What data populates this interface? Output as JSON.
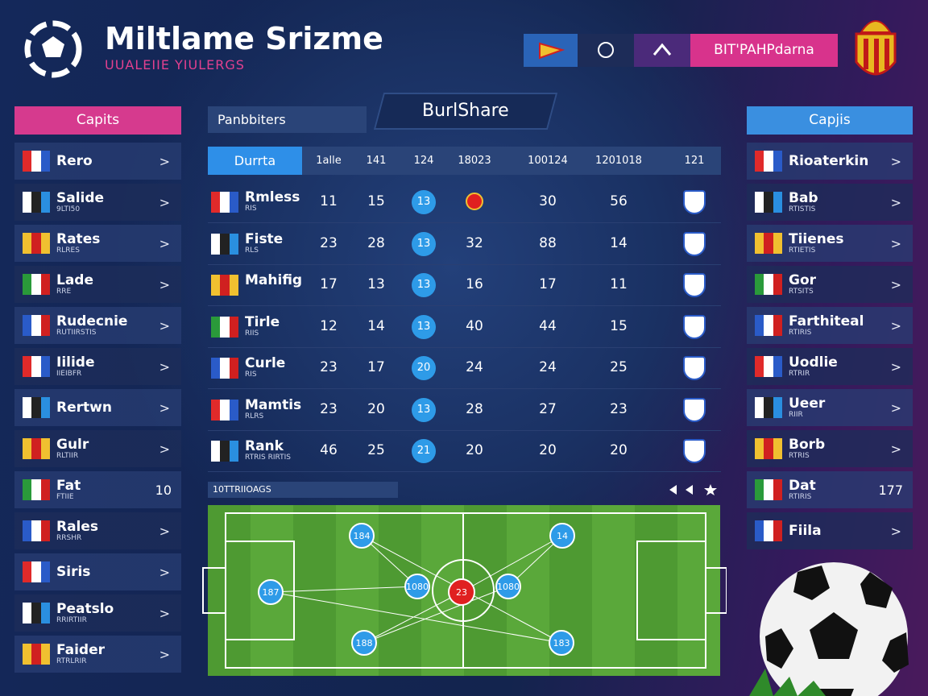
{
  "header": {
    "title": "Miltlame Srizme",
    "subtitle": "UUALEIIE YIULERGS",
    "tab_label": "BIT'PAHPdarna"
  },
  "left_panel": {
    "title": "Capits",
    "items": [
      {
        "name": "Rero"
      },
      {
        "name": "Salide",
        "sub": "9LTI50"
      },
      {
        "name": "Rates",
        "sub": "RLRES"
      },
      {
        "name": "Lade",
        "sub": "RRE"
      },
      {
        "name": "Rudecnie",
        "sub": "RUTIIRSTIS"
      },
      {
        "name": "Iilide",
        "sub": "IIEIBFR"
      },
      {
        "name": "Rertwn"
      },
      {
        "name": "Gulr",
        "sub": "RLTIIR"
      },
      {
        "name": "Fat",
        "sub": "FTIIE",
        "value": 10
      },
      {
        "name": "Rales",
        "sub": "RRSHR"
      },
      {
        "name": "Siris"
      },
      {
        "name": "Peatslo",
        "sub": "RRIRTIIR"
      },
      {
        "name": "Faider",
        "sub": "RTRLRIR"
      }
    ]
  },
  "center": {
    "tab": "Panbbiters",
    "heading": "BurlShare",
    "columns": [
      "Durrta",
      "1alle",
      "141",
      "124",
      "18023",
      "100124",
      "1201018",
      "121"
    ],
    "rows": [
      {
        "name": "Rmless",
        "sub": "RIS",
        "cells": [
          11,
          15,
          13,
          null,
          30,
          56
        ]
      },
      {
        "name": "Fiste",
        "sub": "RLS",
        "cells": [
          23,
          28,
          13,
          32,
          88,
          14
        ]
      },
      {
        "name": "Mahifig",
        "cells": [
          17,
          13,
          13,
          16,
          17,
          11
        ]
      },
      {
        "name": "Tirle",
        "sub": "RIIS",
        "cells": [
          12,
          14,
          13,
          40,
          44,
          15
        ]
      },
      {
        "name": "Curle",
        "sub": "RIS",
        "cells": [
          23,
          17,
          20,
          24,
          24,
          25
        ]
      },
      {
        "name": "Mamtis",
        "sub": "RLRS",
        "cells": [
          23,
          20,
          13,
          28,
          27,
          23
        ]
      },
      {
        "name": "Rank",
        "sub": "RTRIS RIRTIS",
        "cells": [
          46,
          25,
          21,
          20,
          20,
          20
        ]
      }
    ],
    "section_label": "10TTRIIOAGS",
    "players": [
      "184",
      "14",
      "1080",
      "1080",
      "187",
      "188",
      "183",
      "23"
    ]
  },
  "right_panel": {
    "title": "Capjis",
    "items": [
      {
        "name": "Rioaterkin"
      },
      {
        "name": "Bab",
        "sub": "RTISTIS"
      },
      {
        "name": "Tiienes",
        "sub": "RTIETIS"
      },
      {
        "name": "Gor",
        "sub": "RTSITS"
      },
      {
        "name": "Farthiteal",
        "sub": "RTIRIS"
      },
      {
        "name": "Uodlie",
        "sub": "RTRIR"
      },
      {
        "name": "Ueer",
        "sub": "RIIR"
      },
      {
        "name": "Borb",
        "sub": "RTRIS"
      },
      {
        "name": "Dat",
        "sub": "RTIRIS",
        "value": 177
      },
      {
        "name": "Fiila"
      }
    ]
  }
}
